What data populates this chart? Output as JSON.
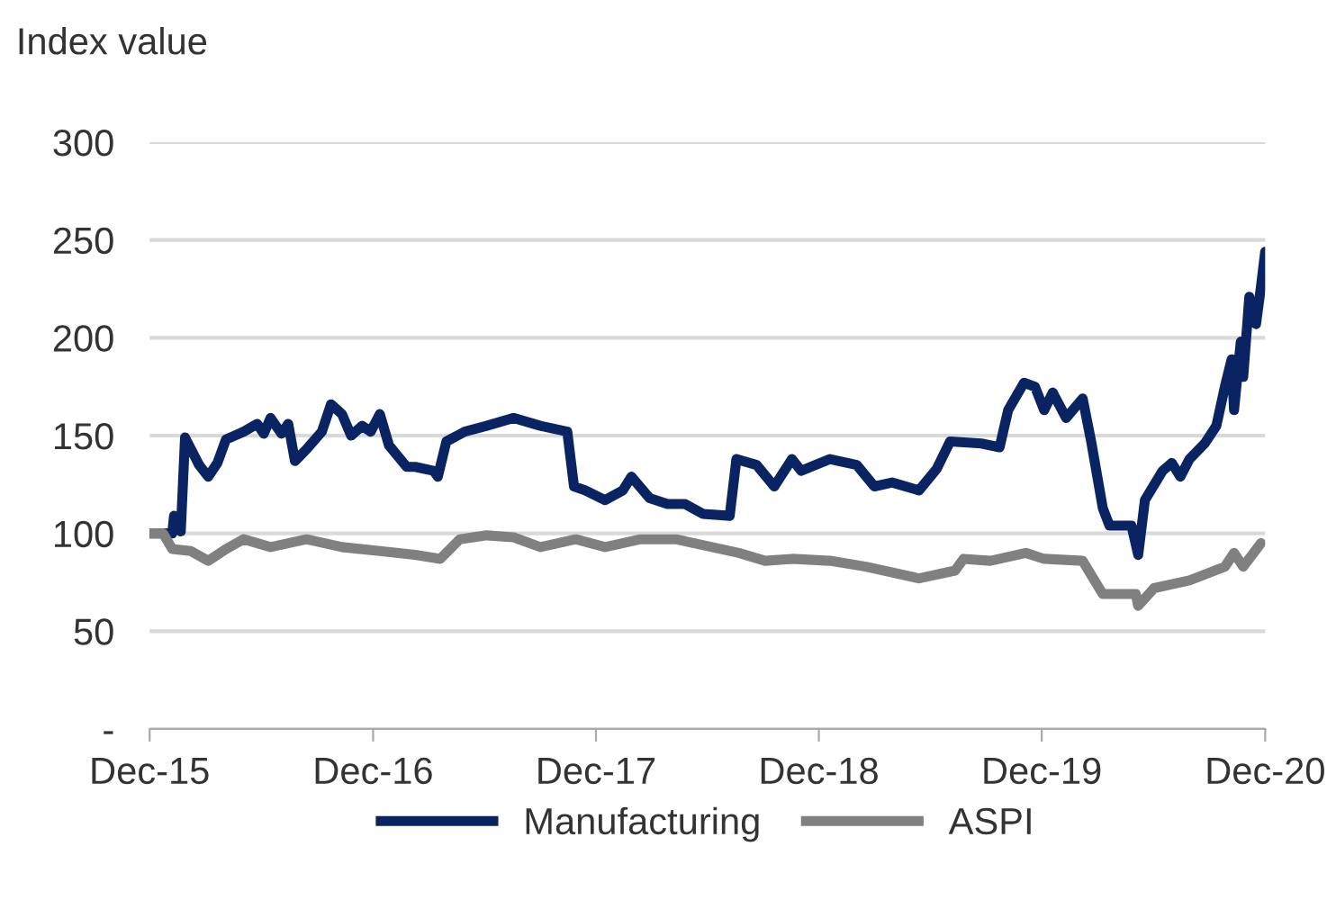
{
  "chart_data": {
    "type": "line",
    "ylabel": "Index value",
    "xlim": [
      "2015-12-31",
      "2020-12-31"
    ],
    "ylim": [
      0,
      300
    ],
    "xticks": [
      {
        "value": "2015-12-31",
        "label": "Dec-15"
      },
      {
        "value": "2016-12-31",
        "label": "Dec-16"
      },
      {
        "value": "2017-12-31",
        "label": "Dec-17"
      },
      {
        "value": "2018-12-31",
        "label": "Dec-18"
      },
      {
        "value": "2019-12-31",
        "label": "Dec-19"
      },
      {
        "value": "2020-12-31",
        "label": "Dec-20"
      }
    ],
    "yticks": [
      {
        "value": 0,
        "label": "-"
      },
      50,
      100,
      150,
      200,
      250,
      300
    ],
    "grid": "y",
    "legend": "bottom",
    "marker": "none",
    "line_style": "solid",
    "series": [
      {
        "name": "Manufacturing",
        "color": "#0a2463",
        "x": [
          "2015-12-31",
          "2016-02-06",
          "2016-02-09",
          "2016-02-20",
          "2016-02-27",
          "2016-03-21",
          "2016-04-05",
          "2016-04-20",
          "2016-05-04",
          "2016-06-02",
          "2016-06-24",
          "2016-07-05",
          "2016-07-16",
          "2016-08-03",
          "2016-08-14",
          "2016-08-25",
          "2016-09-13",
          "2016-10-08",
          "2016-10-23",
          "2016-11-10",
          "2016-11-25",
          "2016-12-13",
          "2016-12-27",
          "2017-01-11",
          "2017-01-26",
          "2017-02-24",
          "2017-03-10",
          "2017-04-09",
          "2017-04-16",
          "2017-04-30",
          "2017-05-30",
          "2017-07-05",
          "2017-08-18",
          "2017-10-01",
          "2017-11-14",
          "2017-11-25",
          "2017-12-13",
          "2018-01-15",
          "2018-02-13",
          "2018-02-27",
          "2018-03-29",
          "2018-04-27",
          "2018-05-26",
          "2018-06-24",
          "2018-08-07",
          "2018-08-18",
          "2018-09-20",
          "2018-10-19",
          "2018-11-17",
          "2018-12-02",
          "2019-01-18",
          "2019-03-03",
          "2019-04-01",
          "2019-04-30",
          "2019-06-13",
          "2019-07-12",
          "2019-08-03",
          "2019-09-23",
          "2019-10-23",
          "2019-11-06",
          "2019-12-02",
          "2019-12-20",
          "2020-01-04",
          "2020-01-18",
          "2020-02-09",
          "2020-03-07",
          "2020-03-21",
          "2020-04-09",
          "2020-04-20",
          "2020-05-26",
          "2020-06-06",
          "2020-06-17",
          "2020-07-16",
          "2020-07-31",
          "2020-08-14",
          "2020-08-29",
          "2020-09-23",
          "2020-10-12",
          "2020-10-26",
          "2020-11-06",
          "2020-11-10",
          "2020-11-21",
          "2020-11-25",
          "2020-12-05",
          "2020-12-16",
          "2020-12-24",
          "2020-12-31"
        ],
        "values": [
          100,
          100,
          109,
          101,
          149,
          135,
          129,
          136,
          148,
          152,
          156,
          151,
          159,
          151,
          156,
          137,
          143,
          152,
          166,
          161,
          150,
          155,
          152,
          161,
          145,
          134,
          134,
          132,
          129,
          147,
          152,
          155,
          159,
          155,
          152,
          124,
          122,
          117,
          122,
          129,
          118,
          115,
          115,
          110,
          109,
          138,
          135,
          124,
          138,
          132,
          138,
          135,
          124,
          126,
          122,
          133,
          147,
          146,
          144,
          163,
          177,
          175,
          163,
          172,
          159,
          169,
          147,
          113,
          104,
          104,
          89,
          117,
          132,
          136,
          129,
          138,
          146,
          155,
          175,
          189,
          163,
          198,
          180,
          221,
          207,
          226,
          244
        ]
      },
      {
        "name": "ASPI",
        "color": "#808080",
        "x": [
          "2015-12-31",
          "2016-01-22",
          "2016-02-06",
          "2016-03-07",
          "2016-04-05",
          "2016-05-04",
          "2016-06-02",
          "2016-07-16",
          "2016-09-13",
          "2016-11-10",
          "2017-01-11",
          "2017-03-10",
          "2017-04-20",
          "2017-05-22",
          "2017-07-05",
          "2017-08-18",
          "2017-10-01",
          "2017-11-28",
          "2018-01-15",
          "2018-03-14",
          "2018-05-11",
          "2018-07-09",
          "2018-08-22",
          "2018-10-04",
          "2018-11-17",
          "2019-01-18",
          "2019-03-18",
          "2019-06-13",
          "2019-08-11",
          "2019-08-25",
          "2019-10-08",
          "2019-12-05",
          "2020-01-04",
          "2020-03-07",
          "2020-04-09",
          "2020-06-02",
          "2020-06-06",
          "2020-07-02",
          "2020-08-29",
          "2020-10-26",
          "2020-11-10",
          "2020-11-25",
          "2020-12-24"
        ],
        "values": [
          100,
          100,
          92,
          91,
          86,
          92,
          97,
          93,
          97,
          93,
          91,
          89,
          87,
          97,
          99,
          98,
          93,
          97,
          93,
          97,
          97,
          93,
          90,
          86,
          87,
          86,
          83,
          77,
          81,
          87,
          86,
          90,
          87,
          86,
          69,
          69,
          63,
          72,
          76,
          83,
          90,
          83,
          95
        ]
      }
    ]
  }
}
